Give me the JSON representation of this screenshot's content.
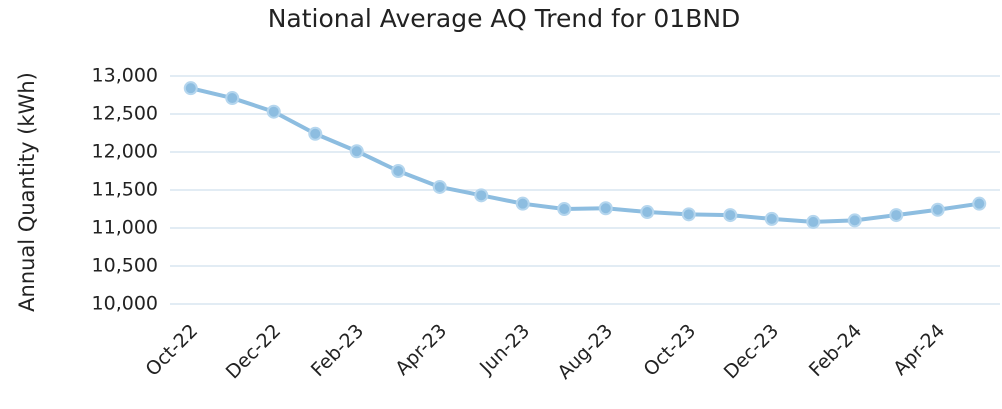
{
  "chart_data": {
    "type": "line",
    "title": "National Average AQ Trend for 01BND",
    "y_label": "Annual Quantity (kWh)",
    "categories": [
      "Oct-22",
      null,
      "Dec-22",
      null,
      "Feb-23",
      null,
      "Apr-23",
      null,
      "Jun-23",
      null,
      "Aug-23",
      null,
      "Oct-23",
      null,
      "Dec-23",
      null,
      "Feb-24",
      null,
      "Apr-24",
      null
    ],
    "series": [
      {
        "color": "#8dbde0",
        "values": [
          12840,
          12710,
          12530,
          12240,
          12010,
          11750,
          11540,
          11430,
          11320,
          11250,
          11260,
          11210,
          11180,
          11170,
          11120,
          11080,
          11100,
          11170,
          11240,
          11320
        ]
      }
    ],
    "ylim": [
      10000,
      13000
    ],
    "yticks": [
      {
        "value": 10000,
        "label": "10,000"
      },
      {
        "value": 10500,
        "label": "10,500"
      },
      {
        "value": 11000,
        "label": "11,000"
      },
      {
        "value": 11500,
        "label": "11,500"
      },
      {
        "value": 12000,
        "label": "12,000"
      },
      {
        "value": 12500,
        "label": "12,500"
      },
      {
        "value": 13000,
        "label": "13,000"
      }
    ],
    "grid": true
  }
}
